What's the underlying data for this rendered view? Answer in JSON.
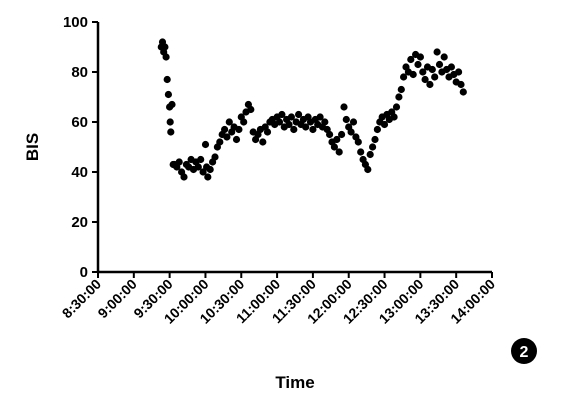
{
  "chart_data": {
    "type": "scatter",
    "xlabel": "Time",
    "ylabel": "BIS",
    "ylim": [
      0,
      100
    ],
    "yticks": [
      0,
      20,
      40,
      60,
      80,
      100
    ],
    "xlim": [
      "8:30:00",
      "14:00:00"
    ],
    "xticks": [
      "8:30:00",
      "9:00:00",
      "9:30:00",
      "10:00:00",
      "10:30:00",
      "11:00:00",
      "11:30:00",
      "12:00:00",
      "12:30:00",
      "13:00:00",
      "13:30:00",
      "14:00:00"
    ],
    "grid": false,
    "points": [
      [
        "9:23:00",
        90
      ],
      [
        "9:24:00",
        92
      ],
      [
        "9:25:00",
        88
      ],
      [
        "9:26:00",
        90
      ],
      [
        "9:27:00",
        86
      ],
      [
        "9:28:00",
        77
      ],
      [
        "9:29:00",
        71
      ],
      [
        "9:30:00",
        66
      ],
      [
        "9:30:30",
        60
      ],
      [
        "9:31:00",
        56
      ],
      [
        "9:32:00",
        67
      ],
      [
        "9:33:00",
        43
      ],
      [
        "9:34:00",
        43
      ],
      [
        "9:36:00",
        42
      ],
      [
        "9:38:00",
        44
      ],
      [
        "9:40:00",
        40
      ],
      [
        "9:42:00",
        38
      ],
      [
        "9:44:00",
        43
      ],
      [
        "9:46:00",
        42
      ],
      [
        "9:48:00",
        45
      ],
      [
        "9:50:00",
        41
      ],
      [
        "9:52:00",
        44
      ],
      [
        "9:54:00",
        42
      ],
      [
        "9:56:00",
        45
      ],
      [
        "9:58:00",
        40
      ],
      [
        "10:00:00",
        51
      ],
      [
        "10:01:00",
        42
      ],
      [
        "10:02:00",
        38
      ],
      [
        "10:04:00",
        41
      ],
      [
        "10:06:00",
        44
      ],
      [
        "10:08:00",
        46
      ],
      [
        "10:10:00",
        50
      ],
      [
        "10:12:00",
        52
      ],
      [
        "10:14:00",
        55
      ],
      [
        "10:16:00",
        57
      ],
      [
        "10:18:00",
        54
      ],
      [
        "10:20:00",
        60
      ],
      [
        "10:22:00",
        56
      ],
      [
        "10:24:00",
        58
      ],
      [
        "10:26:00",
        53
      ],
      [
        "10:28:00",
        57
      ],
      [
        "10:30:00",
        62
      ],
      [
        "10:32:00",
        60
      ],
      [
        "10:34:00",
        64
      ],
      [
        "10:36:00",
        67
      ],
      [
        "10:38:00",
        65
      ],
      [
        "10:40:00",
        56
      ],
      [
        "10:42:00",
        53
      ],
      [
        "10:44:00",
        55
      ],
      [
        "10:46:00",
        57
      ],
      [
        "10:48:00",
        52
      ],
      [
        "10:50:00",
        58
      ],
      [
        "10:52:00",
        56
      ],
      [
        "10:54:00",
        60
      ],
      [
        "10:56:00",
        61
      ],
      [
        "10:58:00",
        59
      ],
      [
        "11:00:00",
        62
      ],
      [
        "11:02:00",
        60
      ],
      [
        "11:04:00",
        63
      ],
      [
        "11:06:00",
        58
      ],
      [
        "11:08:00",
        61
      ],
      [
        "11:10:00",
        59
      ],
      [
        "11:12:00",
        62
      ],
      [
        "11:14:00",
        57
      ],
      [
        "11:16:00",
        60
      ],
      [
        "11:18:00",
        63
      ],
      [
        "11:20:00",
        59
      ],
      [
        "11:22:00",
        61
      ],
      [
        "11:24:00",
        58
      ],
      [
        "11:26:00",
        62
      ],
      [
        "11:28:00",
        60
      ],
      [
        "11:30:00",
        57
      ],
      [
        "11:32:00",
        61
      ],
      [
        "11:34:00",
        59
      ],
      [
        "11:36:00",
        62
      ],
      [
        "11:38:00",
        58
      ],
      [
        "11:40:00",
        60
      ],
      [
        "11:42:00",
        57
      ],
      [
        "11:44:00",
        55
      ],
      [
        "11:46:00",
        52
      ],
      [
        "11:48:00",
        50
      ],
      [
        "11:50:00",
        53
      ],
      [
        "11:52:00",
        48
      ],
      [
        "11:54:00",
        55
      ],
      [
        "11:56:00",
        66
      ],
      [
        "11:58:00",
        61
      ],
      [
        "12:00:00",
        58
      ],
      [
        "12:02:00",
        56
      ],
      [
        "12:04:00",
        60
      ],
      [
        "12:06:00",
        54
      ],
      [
        "12:08:00",
        52
      ],
      [
        "12:10:00",
        48
      ],
      [
        "12:12:00",
        45
      ],
      [
        "12:14:00",
        43
      ],
      [
        "12:16:00",
        41
      ],
      [
        "12:18:00",
        47
      ],
      [
        "12:20:00",
        50
      ],
      [
        "12:22:00",
        53
      ],
      [
        "12:24:00",
        57
      ],
      [
        "12:26:00",
        60
      ],
      [
        "12:28:00",
        62
      ],
      [
        "12:30:00",
        59
      ],
      [
        "12:32:00",
        63
      ],
      [
        "12:34:00",
        61
      ],
      [
        "12:36:00",
        64
      ],
      [
        "12:38:00",
        62
      ],
      [
        "12:40:00",
        66
      ],
      [
        "12:42:00",
        70
      ],
      [
        "12:44:00",
        73
      ],
      [
        "12:46:00",
        78
      ],
      [
        "12:48:00",
        82
      ],
      [
        "12:50:00",
        80
      ],
      [
        "12:52:00",
        85
      ],
      [
        "12:54:00",
        79
      ],
      [
        "12:56:00",
        87
      ],
      [
        "12:58:00",
        83
      ],
      [
        "13:00:00",
        86
      ],
      [
        "13:02:00",
        80
      ],
      [
        "13:04:00",
        77
      ],
      [
        "13:06:00",
        82
      ],
      [
        "13:08:00",
        75
      ],
      [
        "13:10:00",
        81
      ],
      [
        "13:12:00",
        78
      ],
      [
        "13:14:00",
        88
      ],
      [
        "13:16:00",
        83
      ],
      [
        "13:18:00",
        80
      ],
      [
        "13:20:00",
        86
      ],
      [
        "13:22:00",
        81
      ],
      [
        "13:24:00",
        78
      ],
      [
        "13:26:00",
        82
      ],
      [
        "13:28:00",
        79
      ],
      [
        "13:30:00",
        76
      ],
      [
        "13:32:00",
        80
      ],
      [
        "13:34:00",
        75
      ],
      [
        "13:36:00",
        72
      ]
    ]
  },
  "badge": {
    "label": "2"
  }
}
